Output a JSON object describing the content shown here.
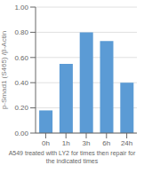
{
  "chart_data": {
    "type": "bar",
    "categories": [
      "0h",
      "1h",
      "3h",
      "6h",
      "24h"
    ],
    "values": [
      0.18,
      0.55,
      0.8,
      0.73,
      0.4
    ],
    "color": "#5b9bd5",
    "ylabel": "p-Smad1 (S465) /β-Actin",
    "xlabel": "A549 treated with LY2 for times then repair for the indicated times",
    "ylim": [
      0,
      1.0
    ],
    "yticks": [
      {
        "value": 0.0,
        "label": "0.00"
      },
      {
        "value": 0.2,
        "label": "0.20"
      },
      {
        "value": 0.4,
        "label": "0.40"
      },
      {
        "value": 0.6,
        "label": "0.60"
      },
      {
        "value": 0.8,
        "label": "0.80"
      },
      {
        "value": 1.0,
        "label": "1.00"
      }
    ],
    "grid": true
  }
}
